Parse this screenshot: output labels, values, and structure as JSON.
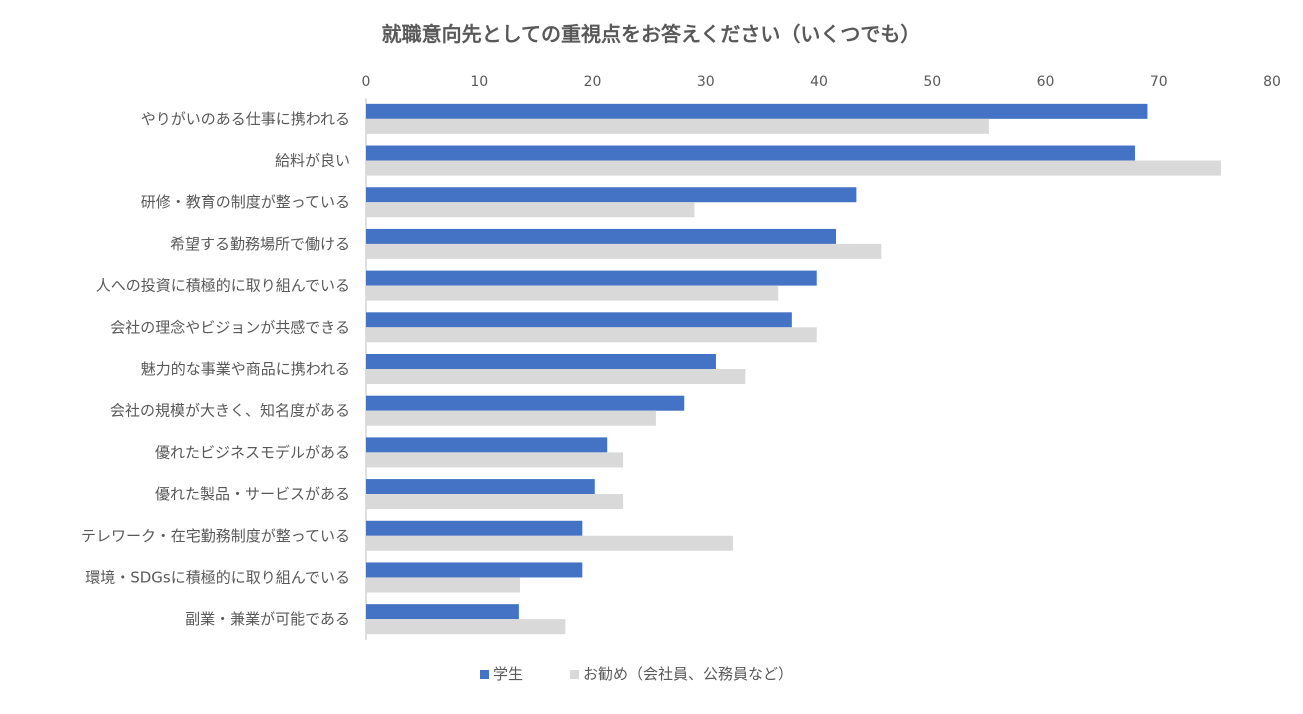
{
  "chart_data": {
    "type": "bar",
    "orientation": "horizontal",
    "title": "就職意向先としての重視点をお答えください（いくつでも）",
    "xlabel": "",
    "ylabel": "",
    "xlim": [
      0,
      80
    ],
    "x_ticks": [
      "0",
      "10",
      "20",
      "30",
      "40",
      "50",
      "60",
      "70",
      "80"
    ],
    "x_axis_position": "top",
    "grid": false,
    "legend_position": "bottom",
    "categories": [
      "やりがいのある仕事に携われる",
      "給料が良い",
      "研修・教育の制度が整っている",
      "希望する勤務場所で働ける",
      "人への投資に積極的に取り組んでいる",
      "会社の理念やビジョンが共感できる",
      "魅力的な事業や商品に携われる",
      "会社の規模が大きく、知名度がある",
      "優れたビジネスモデルがある",
      "優れた製品・サービスがある",
      "テレワーク・在宅勤務制度が整っている",
      "環境・SDGsに積極的に取り組んでいる",
      "副業・兼業が可能である"
    ],
    "series": [
      {
        "name": "学生",
        "color": "#4472C4",
        "values": [
          69.0,
          67.9,
          43.3,
          41.5,
          39.8,
          37.6,
          30.9,
          28.1,
          21.3,
          20.2,
          19.1,
          19.1,
          13.5
        ]
      },
      {
        "name": "お勧め（会社員、公務員など）",
        "color": "#D9D9D9",
        "values": [
          55.0,
          75.5,
          29.0,
          45.5,
          36.4,
          39.8,
          33.5,
          25.6,
          22.7,
          22.7,
          32.4,
          13.6,
          17.6
        ]
      }
    ]
  }
}
